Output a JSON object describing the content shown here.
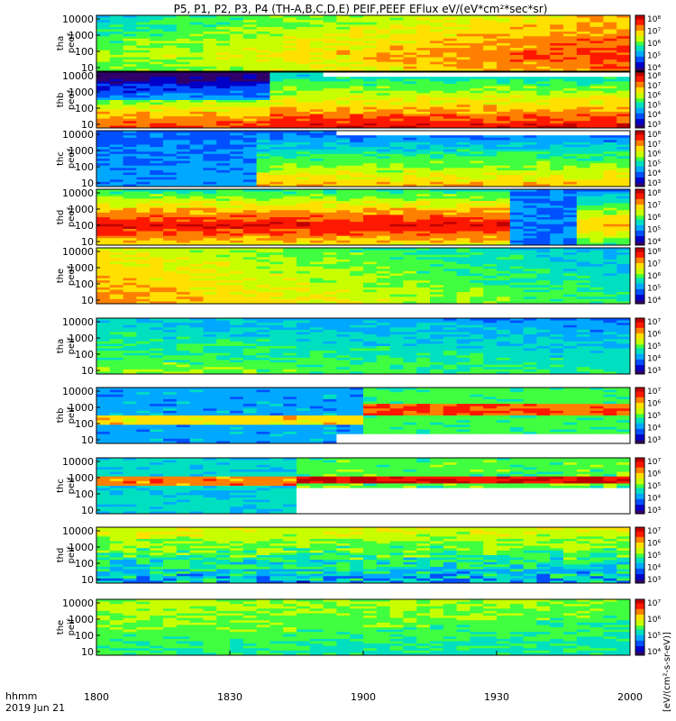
{
  "title": "P5, P1, P2, P3, P4 (TH-A,B,C,D,E) PEIF,PEEF EFlux eV/(eV*cm²*sec*sr)",
  "x_axis": {
    "label_line1": "hhmm",
    "label_line2": "2019 Jun 21",
    "ticks": [
      "1800",
      "1830",
      "1900",
      "1930",
      "2000"
    ]
  },
  "colorbar_label": "[eV/(cm²-s-sr-eV)]",
  "colors": {
    "rainbow": [
      "#30006a",
      "#0000c8",
      "#0050ff",
      "#00a8ff",
      "#00e0c0",
      "#40ff40",
      "#c8ff00",
      "#ffe000",
      "#ff8000",
      "#ff1800",
      "#c00000"
    ]
  },
  "chart_data": {
    "type": "heatmap",
    "x_range": [
      "1800",
      "2000"
    ],
    "x_unit": "hhmm",
    "y_scale": "log",
    "y_ticks": [
      "10",
      "100",
      "1000",
      "10000"
    ],
    "panels": [
      {
        "ylabel": [
          "tha",
          "peef"
        ],
        "y_ticks": [
          "10",
          "100",
          "1000",
          "10000"
        ],
        "cbar_ticks": [
          "10⁴",
          "10⁵",
          "10⁶",
          "10⁷",
          "10⁸"
        ]
      },
      {
        "ylabel": [
          "thb",
          "peef"
        ],
        "y_ticks": [
          "10",
          "100",
          "1000",
          "10000"
        ],
        "cbar_ticks": [
          "10³",
          "10⁴",
          "10⁵",
          "10⁶",
          "10⁷",
          "10⁸"
        ]
      },
      {
        "ylabel": [
          "thc",
          "peef"
        ],
        "y_ticks": [
          "10",
          "100",
          "1000",
          "10000"
        ],
        "cbar_ticks": [
          "10³",
          "10⁴",
          "10⁵",
          "10⁶",
          "10⁷",
          "10⁸"
        ]
      },
      {
        "ylabel": [
          "thd",
          "peef"
        ],
        "y_ticks": [
          "10",
          "100",
          "1000",
          "10000"
        ],
        "cbar_ticks": [
          "10⁴",
          "10⁵",
          "10⁶",
          "10⁷",
          "10⁸"
        ]
      },
      {
        "ylabel": [
          "the",
          "peef"
        ],
        "y_ticks": [
          "10",
          "100",
          "1000",
          "10000"
        ],
        "cbar_ticks": [
          "10⁴",
          "10⁵",
          "10⁶",
          "10⁷",
          "10⁸"
        ]
      },
      {
        "ylabel": [
          "tha",
          "peif"
        ],
        "y_ticks": [
          "10",
          "100",
          "1000",
          "10000"
        ],
        "cbar_ticks": [
          "10³",
          "10⁴",
          "10⁵",
          "10⁶",
          "10⁷"
        ]
      },
      {
        "ylabel": [
          "thb",
          "peif"
        ],
        "y_ticks": [
          "10",
          "100",
          "1000",
          "10000"
        ],
        "cbar_ticks": [
          "10³",
          "10⁴",
          "10⁵",
          "10⁶",
          "10⁷"
        ]
      },
      {
        "ylabel": [
          "thc",
          "peif"
        ],
        "y_ticks": [
          "10",
          "100",
          "1000",
          "10000"
        ],
        "cbar_ticks": [
          "10³",
          "10⁴",
          "10⁵",
          "10⁶",
          "10⁷"
        ]
      },
      {
        "ylabel": [
          "thd",
          "peif"
        ],
        "y_ticks": [
          "10",
          "100",
          "1000",
          "10000"
        ],
        "cbar_ticks": [
          "10³",
          "10⁴",
          "10⁵",
          "10⁶",
          "10⁷"
        ]
      },
      {
        "ylabel": [
          "the",
          "peif"
        ],
        "y_ticks": [
          "10",
          "100",
          "1000",
          "10000"
        ],
        "cbar_ticks": [
          "10⁴",
          "10⁵",
          "10⁶",
          "10⁷"
        ]
      }
    ]
  }
}
